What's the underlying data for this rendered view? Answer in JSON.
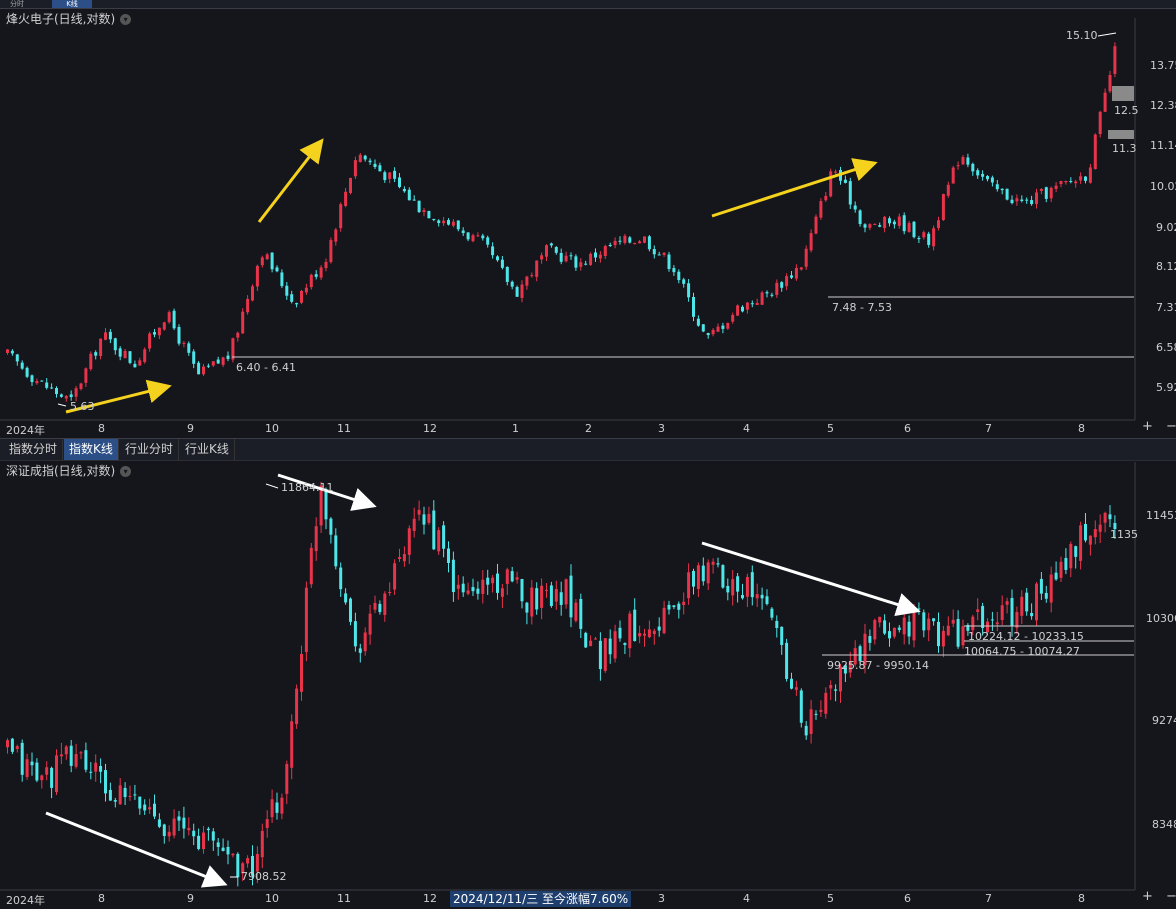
{
  "top_tabs": [
    "分时",
    "K线"
  ],
  "top_panel": {
    "title": "烽火电子(日线,对数)",
    "x_labels": [
      "2024年",
      "8",
      "9",
      "10",
      "11",
      "12",
      "1",
      "2",
      "3",
      "4",
      "5",
      "6",
      "7",
      "8"
    ],
    "y_labels": [
      "13.75",
      "12.38",
      "11.14",
      "10.02",
      "9.02",
      "8.12",
      "7.31",
      "6.58",
      "5.92"
    ],
    "annotations": {
      "high": "15.10",
      "low": "5.63",
      "range1": "6.40 - 6.41",
      "range2": "7.48 - 7.53",
      "box1": "12.5",
      "box2": "11.3"
    }
  },
  "bottom_panel": {
    "tabs": [
      "指数分时",
      "指数K线",
      "行业分时",
      "行业K线"
    ],
    "active_tab": 1,
    "title": "深证成指(日线,对数)",
    "x_labels": [
      "2024年",
      "8",
      "9",
      "10",
      "11",
      "12",
      "1",
      "2",
      "3",
      "4",
      "5",
      "6",
      "7",
      "8"
    ],
    "y_labels": [
      "11453",
      "10306",
      "9274",
      "8348"
    ],
    "annotations": {
      "high": "11864.11",
      "low": "7908.52",
      "range1": "9925.87 - 9950.14",
      "range2": "10224.12 - 10233.15",
      "range3": "10064.75 - 10074.27",
      "last": "1135"
    },
    "status_text": "2024/12/11/三  至今涨幅7.60%"
  },
  "controls": {
    "zoom_in": "+",
    "zoom_out": "−"
  },
  "colors": {
    "up": "#e8344b",
    "down": "#4ee6e8",
    "arrow_top": "#f5d21d",
    "arrow_bottom": "#ffffff",
    "bg": "#14161c"
  },
  "chart_data": [
    {
      "type": "candlestick",
      "title": "烽火电子(日线,对数)",
      "y_scale": "log",
      "ylim": [
        5.5,
        15.5
      ],
      "x_ticks": [
        "2024年",
        "8",
        "9",
        "10",
        "11",
        "12",
        "1",
        "2",
        "3",
        "4",
        "5",
        "6",
        "7",
        "8"
      ],
      "close_path": [
        {
          "x": "2024-07",
          "y": 6.45
        },
        {
          "x": "2024-07",
          "y": 6.0
        },
        {
          "x": "2024-08",
          "y": 5.7
        },
        {
          "x": "2024-08",
          "y": 6.8
        },
        {
          "x": "2024-08",
          "y": 6.3
        },
        {
          "x": "2024-09",
          "y": 7.2
        },
        {
          "x": "2024-09",
          "y": 6.1
        },
        {
          "x": "2024-09",
          "y": 6.45
        },
        {
          "x": "2024-10",
          "y": 8.5
        },
        {
          "x": "2024-10",
          "y": 7.4
        },
        {
          "x": "2024-10",
          "y": 8.3
        },
        {
          "x": "2024-11",
          "y": 11.0
        },
        {
          "x": "2024-11",
          "y": 10.3
        },
        {
          "x": "2024-12",
          "y": 9.5
        },
        {
          "x": "2024-12",
          "y": 9.1
        },
        {
          "x": "2025-01",
          "y": 8.6
        },
        {
          "x": "2025-01",
          "y": 7.6
        },
        {
          "x": "2025-02",
          "y": 8.5
        },
        {
          "x": "2025-02",
          "y": 8.2
        },
        {
          "x": "2025-03",
          "y": 8.6
        },
        {
          "x": "2025-03",
          "y": 8.8
        },
        {
          "x": "2025-04",
          "y": 8.1
        },
        {
          "x": "2025-04",
          "y": 6.7
        },
        {
          "x": "2025-05",
          "y": 7.3
        },
        {
          "x": "2025-05",
          "y": 7.6
        },
        {
          "x": "2025-05",
          "y": 8.2
        },
        {
          "x": "2025-06",
          "y": 10.6
        },
        {
          "x": "2025-06",
          "y": 9.0
        },
        {
          "x": "2025-06",
          "y": 9.2
        },
        {
          "x": "2025-06",
          "y": 8.7
        },
        {
          "x": "2025-07",
          "y": 11.0
        },
        {
          "x": "2025-07",
          "y": 10.0
        },
        {
          "x": "2025-07",
          "y": 9.6
        },
        {
          "x": "2025-08",
          "y": 10.0
        },
        {
          "x": "2025-08",
          "y": 10.4
        },
        {
          "x": "2025-08",
          "y": 15.1
        }
      ],
      "markers": {
        "high": 15.1,
        "low": 5.63,
        "support_1": [
          6.4,
          6.41
        ],
        "support_2": [
          7.48,
          7.53
        ]
      }
    },
    {
      "type": "candlestick",
      "title": "深证成指(日线,对数)",
      "y_scale": "log",
      "ylim": [
        7800,
        12000
      ],
      "x_ticks": [
        "2024年",
        "8",
        "9",
        "10",
        "11",
        "12",
        "1",
        "2",
        "3",
        "4",
        "5",
        "6",
        "7",
        "8"
      ],
      "close_path": [
        {
          "x": "2024-07",
          "y": 8950
        },
        {
          "x": "2024-07",
          "y": 8700
        },
        {
          "x": "2024-08",
          "y": 8950
        },
        {
          "x": "2024-08",
          "y": 8550
        },
        {
          "x": "2024-08",
          "y": 8450
        },
        {
          "x": "2024-09",
          "y": 8250
        },
        {
          "x": "2024-09",
          "y": 8150
        },
        {
          "x": "2024-09",
          "y": 7910
        },
        {
          "x": "2024-09",
          "y": 8700
        },
        {
          "x": "2024-10",
          "y": 11860
        },
        {
          "x": "2024-10",
          "y": 10000
        },
        {
          "x": "2024-10",
          "y": 10600
        },
        {
          "x": "2024-11",
          "y": 11500
        },
        {
          "x": "2024-11",
          "y": 10500
        },
        {
          "x": "2024-12",
          "y": 10700
        },
        {
          "x": "2024-12",
          "y": 10500
        },
        {
          "x": "2025-01",
          "y": 10600
        },
        {
          "x": "2025-01",
          "y": 9900
        },
        {
          "x": "2025-02",
          "y": 10200
        },
        {
          "x": "2025-02",
          "y": 10300
        },
        {
          "x": "2025-03",
          "y": 10800
        },
        {
          "x": "2025-03",
          "y": 10700
        },
        {
          "x": "2025-04",
          "y": 10300
        },
        {
          "x": "2025-04",
          "y": 9150
        },
        {
          "x": "2025-04",
          "y": 9700
        },
        {
          "x": "2025-05",
          "y": 10100
        },
        {
          "x": "2025-05",
          "y": 10250
        },
        {
          "x": "2025-06",
          "y": 10100
        },
        {
          "x": "2025-06",
          "y": 10220
        },
        {
          "x": "2025-07",
          "y": 10350
        },
        {
          "x": "2025-07",
          "y": 10600
        },
        {
          "x": "2025-08",
          "y": 11200
        },
        {
          "x": "2025-08",
          "y": 11450
        }
      ],
      "markers": {
        "high": 11864.11,
        "low": 7908.52,
        "range_1": [
          9925.87,
          9950.14
        ],
        "range_2": [
          10224.12,
          10233.15
        ],
        "range_3": [
          10064.75,
          10074.27
        ]
      }
    }
  ]
}
